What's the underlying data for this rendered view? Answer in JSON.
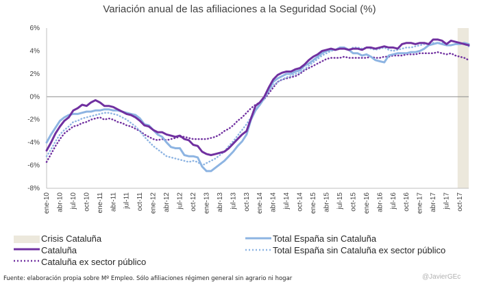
{
  "chart_data": {
    "type": "line",
    "title": "Variación anual de las afiliaciones a la Seguridad Social (%)",
    "xlabel": "",
    "ylabel": "",
    "ylim": [
      -8,
      6
    ],
    "yticks": [
      -8,
      -6,
      -4,
      -2,
      0,
      2,
      4,
      6
    ],
    "ytick_labels": [
      "-8%",
      "-6%",
      "-4%",
      "-2%",
      "0%",
      "2%",
      "4%",
      "6%"
    ],
    "x": [
      "ene-10",
      "feb-10",
      "mar-10",
      "abr-10",
      "may-10",
      "jun-10",
      "jul-10",
      "ago-10",
      "sep-10",
      "oct-10",
      "nov-10",
      "dic-10",
      "ene-11",
      "feb-11",
      "mar-11",
      "abr-11",
      "may-11",
      "jun-11",
      "jul-11",
      "ago-11",
      "sep-11",
      "oct-11",
      "nov-11",
      "dic-11",
      "ene-12",
      "feb-12",
      "mar-12",
      "abr-12",
      "may-12",
      "jun-12",
      "jul-12",
      "ago-12",
      "sep-12",
      "oct-12",
      "nov-12",
      "dic-12",
      "ene-13",
      "feb-13",
      "mar-13",
      "abr-13",
      "may-13",
      "jun-13",
      "jul-13",
      "ago-13",
      "sep-13",
      "oct-13",
      "nov-13",
      "dic-13",
      "ene-14",
      "feb-14",
      "mar-14",
      "abr-14",
      "may-14",
      "jun-14",
      "jul-14",
      "ago-14",
      "sep-14",
      "oct-14",
      "nov-14",
      "dic-14",
      "ene-15",
      "feb-15",
      "mar-15",
      "abr-15",
      "may-15",
      "jun-15",
      "jul-15",
      "ago-15",
      "sep-15",
      "oct-15",
      "nov-15",
      "dic-15",
      "ene-16",
      "feb-16",
      "mar-16",
      "abr-16",
      "may-16",
      "jun-16",
      "jul-16",
      "ago-16",
      "sep-16",
      "oct-16",
      "nov-16",
      "dic-16",
      "ene-17",
      "feb-17",
      "mar-17",
      "abr-17",
      "may-17",
      "jun-17",
      "jul-17",
      "ago-17",
      "sep-17",
      "oct-17",
      "nov-17",
      "dic-17"
    ],
    "tick_labels": [
      "ene-10",
      "abr-10",
      "jul-10",
      "oct-10",
      "ene-11",
      "abr-11",
      "jul-11",
      "oct-11",
      "ene-12",
      "abr-12",
      "jul-12",
      "oct-12",
      "ene-13",
      "abr-13",
      "jul-13",
      "oct-13",
      "ene-14",
      "abr-14",
      "jul-14",
      "oct-14",
      "ene-15",
      "abr-15",
      "jul-15",
      "oct-15",
      "ene-16",
      "abr-16",
      "jul-16",
      "oct-16",
      "ene-17",
      "abr-17",
      "jul-17",
      "oct-17"
    ],
    "shaded_region": {
      "name": "Crisis Cataluña",
      "from": "oct-17",
      "to": "dic-17",
      "color": "#ece8dc"
    },
    "series": [
      {
        "name": "Total España sin Cataluña",
        "color": "#8db4e2",
        "style": "solid",
        "values": [
          -4.0,
          -3.3,
          -2.7,
          -2.1,
          -1.8,
          -1.6,
          -1.5,
          -1.5,
          -1.4,
          -1.3,
          -1.3,
          -1.2,
          -1.2,
          -1.1,
          -1.1,
          -1.2,
          -1.2,
          -1.3,
          -1.4,
          -1.5,
          -1.6,
          -1.9,
          -2.4,
          -2.5,
          -2.9,
          -3.3,
          -3.5,
          -4.0,
          -4.4,
          -4.5,
          -4.5,
          -5.1,
          -5.2,
          -5.2,
          -5.3,
          -6.1,
          -6.5,
          -6.5,
          -6.2,
          -5.9,
          -5.6,
          -5.2,
          -4.8,
          -4.3,
          -3.9,
          -3.3,
          -2.0,
          -1.2,
          -0.7,
          -0.1,
          0.6,
          1.3,
          1.6,
          1.8,
          2.0,
          2.0,
          2.2,
          2.3,
          2.7,
          2.9,
          3.2,
          3.5,
          3.8,
          4.0,
          4.1,
          4.1,
          4.3,
          4.3,
          4.1,
          3.8,
          3.8,
          3.6,
          3.7,
          3.5,
          3.2,
          3.1,
          3.0,
          3.6,
          3.7,
          3.8,
          3.8,
          3.8,
          3.9,
          3.9,
          4.0,
          4.2,
          4.5,
          4.6,
          4.7,
          4.6,
          4.5,
          4.5,
          4.6,
          4.6,
          4.7,
          4.6
        ]
      },
      {
        "name": "Cataluña",
        "color": "#7030a0",
        "style": "solid",
        "values": [
          -4.7,
          -4.0,
          -3.2,
          -2.6,
          -2.1,
          -1.8,
          -1.2,
          -1.0,
          -0.7,
          -0.8,
          -0.5,
          -0.3,
          -0.5,
          -0.8,
          -0.8,
          -0.9,
          -1.1,
          -1.3,
          -1.5,
          -1.6,
          -1.8,
          -2.1,
          -2.5,
          -2.6,
          -2.9,
          -3.1,
          -3.1,
          -3.3,
          -3.4,
          -3.5,
          -3.4,
          -3.7,
          -3.8,
          -4.2,
          -4.3,
          -4.8,
          -5.0,
          -5.1,
          -5.0,
          -4.9,
          -4.8,
          -4.5,
          -4.1,
          -3.7,
          -3.3,
          -3.0,
          -1.9,
          -0.8,
          -0.5,
          0.0,
          0.8,
          1.5,
          1.9,
          2.1,
          2.2,
          2.2,
          2.4,
          2.5,
          2.8,
          3.2,
          3.5,
          3.7,
          4.0,
          4.1,
          4.2,
          4.1,
          4.2,
          4.2,
          4.1,
          4.2,
          4.2,
          4.1,
          4.3,
          4.3,
          4.2,
          4.3,
          4.4,
          4.3,
          4.3,
          4.2,
          4.6,
          4.7,
          4.7,
          4.6,
          4.7,
          4.7,
          4.6,
          5.0,
          5.0,
          4.9,
          4.6,
          4.9,
          4.8,
          4.7,
          4.6,
          4.5
        ]
      },
      {
        "name": "Total España sin Cataluña ex sector público",
        "color": "#8db4e2",
        "style": "dotted",
        "values": [
          -5.2,
          -4.6,
          -3.9,
          -3.3,
          -2.9,
          -2.6,
          -2.2,
          -2.1,
          -1.9,
          -1.8,
          -1.7,
          -1.6,
          -1.5,
          -1.4,
          -1.4,
          -1.5,
          -1.6,
          -1.8,
          -2.0,
          -2.3,
          -2.6,
          -3.0,
          -3.5,
          -3.9,
          -4.3,
          -4.6,
          -4.9,
          -5.2,
          -5.3,
          -5.4,
          -5.5,
          -5.6,
          -5.7,
          -5.6,
          -5.7,
          -6.0,
          -5.8,
          -5.6,
          -5.4,
          -5.1,
          -4.8,
          -4.3,
          -3.9,
          -3.4,
          -2.9,
          -2.4,
          -1.8,
          -1.1,
          -0.7,
          -0.2,
          0.5,
          1.0,
          1.3,
          1.5,
          1.7,
          1.8,
          2.0,
          2.1,
          2.4,
          2.7,
          3.0,
          3.3,
          3.6,
          3.8,
          4.0,
          4.1,
          4.2,
          4.2,
          4.1,
          4.3,
          4.3,
          4.2,
          4.3,
          4.2,
          4.1,
          4.2,
          4.3,
          4.1,
          4.0,
          4.1,
          4.2,
          4.3,
          4.3,
          4.4,
          4.5,
          4.6,
          4.6,
          4.7,
          4.7,
          4.7,
          4.5,
          4.5,
          4.6,
          4.7,
          4.6,
          4.4
        ]
      },
      {
        "name": "Cataluña ex sector público",
        "color": "#7030a0",
        "style": "dotted",
        "values": [
          -5.7,
          -5.0,
          -4.3,
          -3.7,
          -3.2,
          -2.9,
          -2.6,
          -2.5,
          -2.3,
          -2.2,
          -2.0,
          -1.9,
          -1.8,
          -2.0,
          -1.9,
          -2.0,
          -2.2,
          -2.3,
          -2.5,
          -2.6,
          -2.8,
          -3.0,
          -3.3,
          -3.5,
          -3.7,
          -3.8,
          -3.7,
          -3.8,
          -3.7,
          -3.6,
          -3.5,
          -3.5,
          -3.6,
          -3.7,
          -3.7,
          -3.7,
          -3.7,
          -3.6,
          -3.5,
          -3.3,
          -3.0,
          -2.8,
          -2.5,
          -2.1,
          -1.8,
          -1.4,
          -1.0,
          -0.7,
          -0.5,
          -0.2,
          0.3,
          0.8,
          1.3,
          1.5,
          1.6,
          1.7,
          1.8,
          2.0,
          2.3,
          2.5,
          2.7,
          2.9,
          3.1,
          3.3,
          3.4,
          3.4,
          3.4,
          3.5,
          3.4,
          3.4,
          3.4,
          3.4,
          3.4,
          3.5,
          3.4,
          3.4,
          3.5,
          3.5,
          3.6,
          3.6,
          3.6,
          3.7,
          3.7,
          3.7,
          3.8,
          3.8,
          3.8,
          3.8,
          3.9,
          3.8,
          3.7,
          3.8,
          3.6,
          3.5,
          3.4,
          3.2
        ]
      }
    ],
    "legend_position": "bottom"
  },
  "legend": {
    "crisis_label": "Crisis Cataluña",
    "total_label": "Total España sin Cataluña",
    "cat_label": "Cataluña",
    "total_ex_label": "Total España sin Cataluña ex sector público",
    "cat_ex_label": "Cataluña ex sector público"
  },
  "source_note": "Fuente: elaboración propia sobre Mº Empleo. Sólo afiliaciones régimen general sin agrario ni hogar",
  "watermark": "@JavierGEc"
}
